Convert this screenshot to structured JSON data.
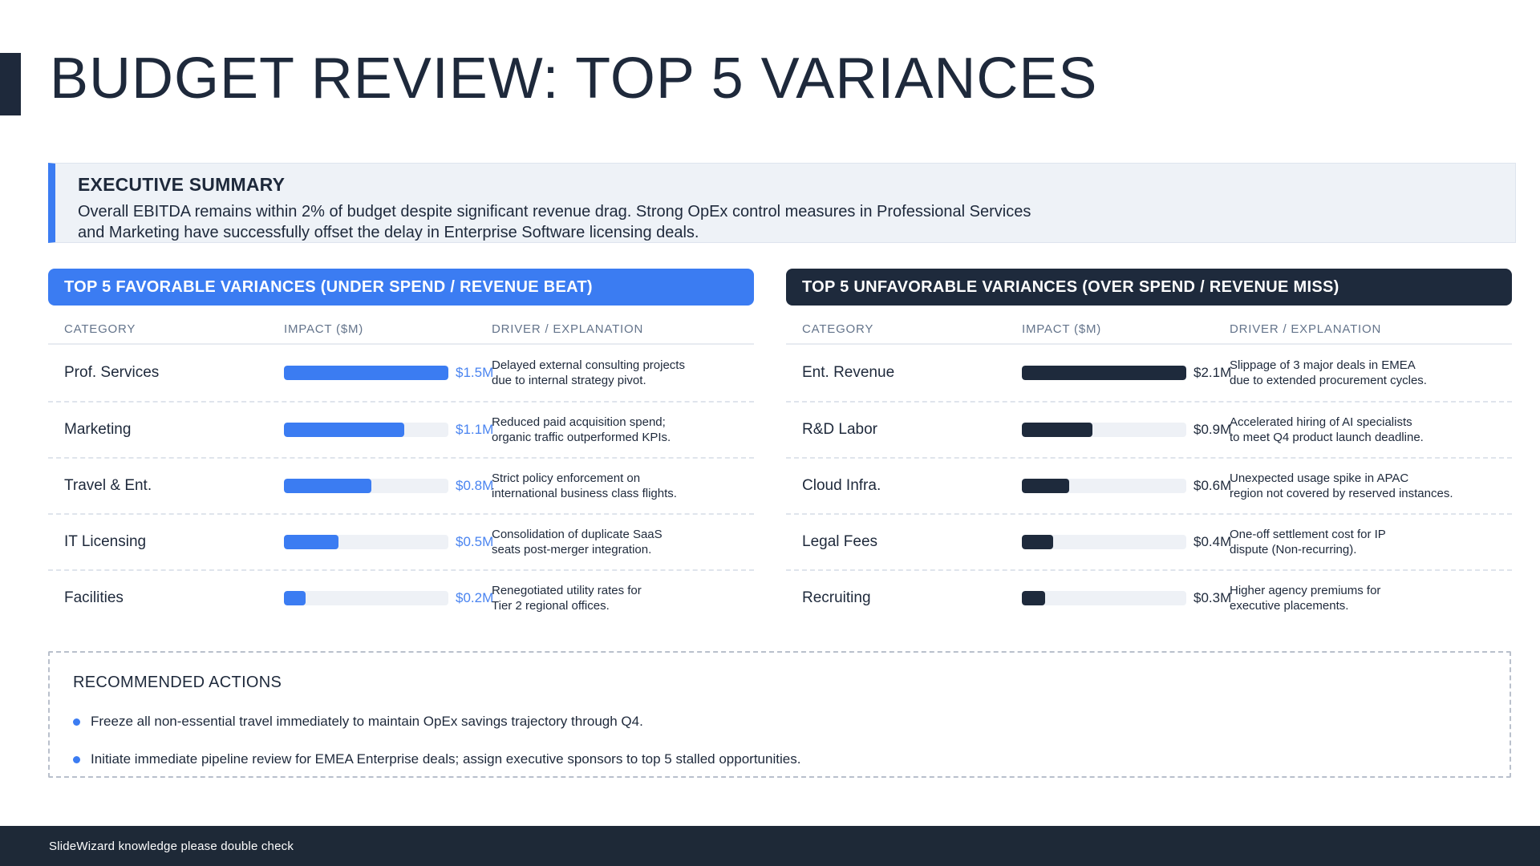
{
  "slide": {
    "title": "BUDGET REVIEW: TOP 5 VARIANCES",
    "footer_note": "SlideWizard knowledge please double check"
  },
  "executive_summary": {
    "title": "EXECUTIVE SUMMARY",
    "line1": "Overall EBITDA remains within 2% of budget despite significant revenue drag. Strong OpEx control measures in Professional Services",
    "line2": "and Marketing have successfully offset the delay in Enterprise Software licensing deals."
  },
  "columns": {
    "category": "CATEGORY",
    "impact": "IMPACT ($M)",
    "driver": "DRIVER / EXPLANATION"
  },
  "favorable": {
    "header": "TOP 5 FAVORABLE VARIANCES (UNDER SPEND / REVENUE BEAT)",
    "max_value_m": 1.5,
    "rows": [
      {
        "category": "Prof. Services",
        "value_label": "$1.5M",
        "value_m": 1.5,
        "pct": 100,
        "driver1": "Delayed external consulting projects",
        "driver2": "due to internal strategy pivot."
      },
      {
        "category": "Marketing",
        "value_label": "$1.1M",
        "value_m": 1.1,
        "pct": 73.3,
        "driver1": "Reduced paid acquisition spend;",
        "driver2": "organic traffic outperformed KPIs."
      },
      {
        "category": "Travel & Ent.",
        "value_label": "$0.8M",
        "value_m": 0.8,
        "pct": 53.3,
        "driver1": "Strict policy enforcement on",
        "driver2": "international business class flights."
      },
      {
        "category": "IT Licensing",
        "value_label": "$0.5M",
        "value_m": 0.5,
        "pct": 33.3,
        "driver1": "Consolidation of duplicate SaaS",
        "driver2": "seats post-merger integration."
      },
      {
        "category": "Facilities",
        "value_label": "$0.2M",
        "value_m": 0.2,
        "pct": 13.3,
        "driver1": "Renegotiated utility rates for",
        "driver2": "Tier 2 regional offices."
      }
    ]
  },
  "unfavorable": {
    "header": "TOP 5 UNFAVORABLE VARIANCES (OVER SPEND / REVENUE MISS)",
    "max_value_m": 2.1,
    "rows": [
      {
        "category": "Ent. Revenue",
        "value_label": "$2.1M",
        "value_m": 2.1,
        "pct": 100,
        "driver1": "Slippage of 3 major deals in EMEA",
        "driver2": "due to extended procurement cycles."
      },
      {
        "category": "R&D Labor",
        "value_label": "$0.9M",
        "value_m": 0.9,
        "pct": 42.9,
        "driver1": "Accelerated hiring of AI specialists",
        "driver2": "to meet Q4 product launch deadline."
      },
      {
        "category": "Cloud Infra.",
        "value_label": "$0.6M",
        "value_m": 0.6,
        "pct": 28.6,
        "driver1": "Unexpected usage spike in APAC",
        "driver2": "region not covered by reserved instances."
      },
      {
        "category": "Legal Fees",
        "value_label": "$0.4M",
        "value_m": 0.4,
        "pct": 19.0,
        "driver1": "One-off settlement cost for IP",
        "driver2": "dispute (Non-recurring)."
      },
      {
        "category": "Recruiting",
        "value_label": "$0.3M",
        "value_m": 0.3,
        "pct": 14.3,
        "driver1": "Higher agency premiums for",
        "driver2": "executive placements."
      }
    ]
  },
  "recommended_actions": {
    "title": "RECOMMENDED ACTIONS",
    "items": [
      "Freeze all non-essential travel immediately to maintain OpEx savings trajectory through Q4.",
      "Initiate immediate pipeline review for EMEA Enterprise deals; assign executive sponsors to top 5 stalled opportunities."
    ]
  },
  "colors": {
    "accent_blue": "#3b7cf2",
    "navy": "#1e2a3c",
    "value_blue": "#4a84f0",
    "summary_bg": "#eef2f7",
    "footer_bg": "#1e2937"
  }
}
